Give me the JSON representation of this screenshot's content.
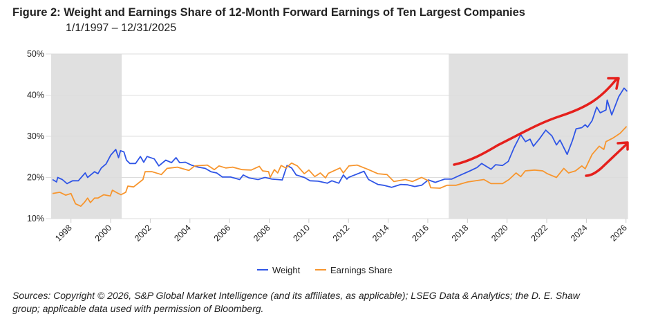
{
  "chart_data": {
    "type": "line",
    "title": "Figure 2:  Weight and Earnings Share of 12-Month Forward Earnings of Ten Largest Companies",
    "subtitle": "1/1/1997 – 12/31/2025",
    "xlabel": "",
    "ylabel": "",
    "xlim": [
      1997.0,
      2026.1
    ],
    "ylim": [
      10,
      50
    ],
    "y_ticks": [
      "10%",
      "20%",
      "30%",
      "40%",
      "50%"
    ],
    "y_tick_values": [
      10,
      20,
      30,
      40,
      50
    ],
    "x_ticks": [
      "1998",
      "2000",
      "2002",
      "2004",
      "2006",
      "2008",
      "2010",
      "2012",
      "2014",
      "2016",
      "2018",
      "2020",
      "2022",
      "2024",
      "2026"
    ],
    "grid": true,
    "legend_position": "bottom-center",
    "shaded_periods": [
      [
        1997.0,
        2000.56
      ],
      [
        2017.06,
        2026.1
      ]
    ],
    "colors": {
      "weight": "#2f55e6",
      "earnings": "#f7952d",
      "annotation": "#e5201c",
      "shade": "#e0e0e0"
    },
    "series": [
      {
        "name": "Weight",
        "color": "#2f55e6",
        "points": [
          [
            1997.07,
            19.5
          ],
          [
            1997.27,
            18.9
          ],
          [
            1997.33,
            20.0
          ],
          [
            1997.56,
            19.5
          ],
          [
            1997.8,
            18.5
          ],
          [
            1998.08,
            19.2
          ],
          [
            1998.37,
            19.2
          ],
          [
            1998.72,
            21.1
          ],
          [
            1998.84,
            20.0
          ],
          [
            1999.19,
            21.4
          ],
          [
            1999.36,
            20.9
          ],
          [
            1999.53,
            22.3
          ],
          [
            1999.77,
            23.3
          ],
          [
            2000.0,
            25.4
          ],
          [
            2000.26,
            26.8
          ],
          [
            2000.4,
            24.8
          ],
          [
            2000.5,
            26.5
          ],
          [
            2000.67,
            26.2
          ],
          [
            2000.8,
            24.2
          ],
          [
            2000.97,
            23.4
          ],
          [
            2001.26,
            23.4
          ],
          [
            2001.5,
            25.1
          ],
          [
            2001.67,
            23.7
          ],
          [
            2001.84,
            25.1
          ],
          [
            2002.2,
            24.5
          ],
          [
            2002.43,
            22.8
          ],
          [
            2002.78,
            24.2
          ],
          [
            2003.07,
            23.6
          ],
          [
            2003.3,
            24.8
          ],
          [
            2003.48,
            23.6
          ],
          [
            2003.77,
            23.7
          ],
          [
            2004.07,
            23.0
          ],
          [
            2004.42,
            22.5
          ],
          [
            2004.77,
            22.2
          ],
          [
            2005.06,
            21.4
          ],
          [
            2005.35,
            21.1
          ],
          [
            2005.64,
            20.1
          ],
          [
            2006.05,
            20.1
          ],
          [
            2006.51,
            19.5
          ],
          [
            2006.69,
            20.6
          ],
          [
            2006.98,
            19.9
          ],
          [
            2007.44,
            19.5
          ],
          [
            2007.79,
            20.0
          ],
          [
            2008.14,
            19.6
          ],
          [
            2008.43,
            19.5
          ],
          [
            2008.66,
            19.4
          ],
          [
            2008.9,
            22.9
          ],
          [
            2009.13,
            22.3
          ],
          [
            2009.36,
            20.6
          ],
          [
            2009.77,
            20.0
          ],
          [
            2010.06,
            19.2
          ],
          [
            2010.47,
            19.1
          ],
          [
            2010.93,
            18.6
          ],
          [
            2011.16,
            19.2
          ],
          [
            2011.51,
            18.6
          ],
          [
            2011.74,
            20.6
          ],
          [
            2011.92,
            19.6
          ],
          [
            2012.0,
            20.0
          ],
          [
            2012.31,
            20.6
          ],
          [
            2012.78,
            21.5
          ],
          [
            2013.01,
            19.5
          ],
          [
            2013.48,
            18.3
          ],
          [
            2013.77,
            18.1
          ],
          [
            2014.17,
            17.6
          ],
          [
            2014.64,
            18.3
          ],
          [
            2014.99,
            18.2
          ],
          [
            2015.34,
            17.8
          ],
          [
            2015.69,
            18.1
          ],
          [
            2016.03,
            19.4
          ],
          [
            2016.38,
            18.8
          ],
          [
            2016.85,
            19.6
          ],
          [
            2017.2,
            19.6
          ],
          [
            2017.66,
            20.6
          ],
          [
            2018.13,
            21.6
          ],
          [
            2018.48,
            22.4
          ],
          [
            2018.72,
            23.4
          ],
          [
            2019.19,
            22.0
          ],
          [
            2019.42,
            23.1
          ],
          [
            2019.77,
            22.9
          ],
          [
            2020.06,
            23.9
          ],
          [
            2020.35,
            27.2
          ],
          [
            2020.69,
            30.4
          ],
          [
            2020.93,
            28.7
          ],
          [
            2021.16,
            29.3
          ],
          [
            2021.33,
            27.6
          ],
          [
            2021.62,
            29.3
          ],
          [
            2021.95,
            31.5
          ],
          [
            2022.26,
            30.1
          ],
          [
            2022.49,
            27.9
          ],
          [
            2022.67,
            29.1
          ],
          [
            2023.03,
            25.6
          ],
          [
            2023.3,
            29.0
          ],
          [
            2023.48,
            31.8
          ],
          [
            2023.77,
            32.1
          ],
          [
            2023.94,
            32.8
          ],
          [
            2024.06,
            32.2
          ],
          [
            2024.29,
            33.8
          ],
          [
            2024.52,
            37.1
          ],
          [
            2024.7,
            35.7
          ],
          [
            2024.99,
            36.4
          ],
          [
            2025.05,
            38.8
          ],
          [
            2025.28,
            35.2
          ],
          [
            2025.63,
            39.6
          ],
          [
            2025.9,
            41.7
          ],
          [
            2026.06,
            40.9
          ]
        ]
      },
      {
        "name": "Earnings Share",
        "color": "#f7952d",
        "points": [
          [
            1997.07,
            16.1
          ],
          [
            1997.44,
            16.4
          ],
          [
            1997.73,
            15.7
          ],
          [
            1998.0,
            16.1
          ],
          [
            1998.23,
            13.6
          ],
          [
            1998.49,
            13.0
          ],
          [
            1998.67,
            13.9
          ],
          [
            1998.84,
            15.0
          ],
          [
            1998.98,
            13.9
          ],
          [
            1999.19,
            15.0
          ],
          [
            1999.36,
            15.0
          ],
          [
            1999.65,
            15.8
          ],
          [
            1999.98,
            15.5
          ],
          [
            2000.09,
            16.9
          ],
          [
            2000.35,
            16.2
          ],
          [
            2000.52,
            15.8
          ],
          [
            2000.76,
            16.4
          ],
          [
            2000.87,
            17.9
          ],
          [
            2001.16,
            17.7
          ],
          [
            2001.63,
            19.5
          ],
          [
            2001.74,
            21.4
          ],
          [
            2002.09,
            21.4
          ],
          [
            2002.56,
            20.7
          ],
          [
            2002.85,
            22.2
          ],
          [
            2003.37,
            22.5
          ],
          [
            2003.95,
            21.7
          ],
          [
            2004.24,
            22.8
          ],
          [
            2004.88,
            23.0
          ],
          [
            2005.23,
            21.9
          ],
          [
            2005.47,
            22.8
          ],
          [
            2005.81,
            22.3
          ],
          [
            2006.16,
            22.5
          ],
          [
            2006.63,
            21.9
          ],
          [
            2007.09,
            21.8
          ],
          [
            2007.5,
            22.7
          ],
          [
            2007.67,
            21.6
          ],
          [
            2007.97,
            21.4
          ],
          [
            2008.05,
            20.0
          ],
          [
            2008.26,
            21.9
          ],
          [
            2008.43,
            21.1
          ],
          [
            2008.6,
            22.9
          ],
          [
            2008.84,
            22.3
          ],
          [
            2009.13,
            23.5
          ],
          [
            2009.42,
            22.8
          ],
          [
            2009.77,
            20.9
          ],
          [
            2010.0,
            21.8
          ],
          [
            2010.3,
            20.2
          ],
          [
            2010.58,
            21.1
          ],
          [
            2010.84,
            19.9
          ],
          [
            2010.98,
            21.0
          ],
          [
            2011.57,
            22.3
          ],
          [
            2011.74,
            21.1
          ],
          [
            2012.02,
            22.8
          ],
          [
            2012.43,
            23.0
          ],
          [
            2013.01,
            21.9
          ],
          [
            2013.48,
            20.9
          ],
          [
            2013.94,
            20.7
          ],
          [
            2014.29,
            19.0
          ],
          [
            2014.87,
            19.5
          ],
          [
            2015.22,
            19.0
          ],
          [
            2015.69,
            20.0
          ],
          [
            2016.03,
            19.2
          ],
          [
            2016.15,
            17.5
          ],
          [
            2016.62,
            17.4
          ],
          [
            2016.97,
            18.1
          ],
          [
            2017.43,
            18.1
          ],
          [
            2018.01,
            18.9
          ],
          [
            2018.83,
            19.5
          ],
          [
            2019.19,
            18.5
          ],
          [
            2019.77,
            18.5
          ],
          [
            2020.1,
            19.5
          ],
          [
            2020.45,
            21.1
          ],
          [
            2020.69,
            20.2
          ],
          [
            2020.92,
            21.6
          ],
          [
            2021.39,
            21.8
          ],
          [
            2021.8,
            21.6
          ],
          [
            2022.03,
            20.9
          ],
          [
            2022.49,
            20.0
          ],
          [
            2022.86,
            22.2
          ],
          [
            2023.1,
            21.1
          ],
          [
            2023.45,
            21.6
          ],
          [
            2023.77,
            22.8
          ],
          [
            2023.94,
            22.1
          ],
          [
            2024.29,
            25.6
          ],
          [
            2024.65,
            27.6
          ],
          [
            2024.88,
            26.8
          ],
          [
            2024.99,
            28.7
          ],
          [
            2025.35,
            29.6
          ],
          [
            2025.7,
            30.7
          ],
          [
            2026.03,
            32.4
          ]
        ]
      }
    ]
  },
  "legend": {
    "weight": "Weight",
    "earnings": "Earnings Share"
  },
  "source_line1": "Sources: Copyright © 2026, S&P Global Market Intelligence (and its affiliates, as applicable); LSEG Data & Analytics; the D. E. Shaw",
  "source_line2": "group; applicable data used with permission of Bloomberg."
}
